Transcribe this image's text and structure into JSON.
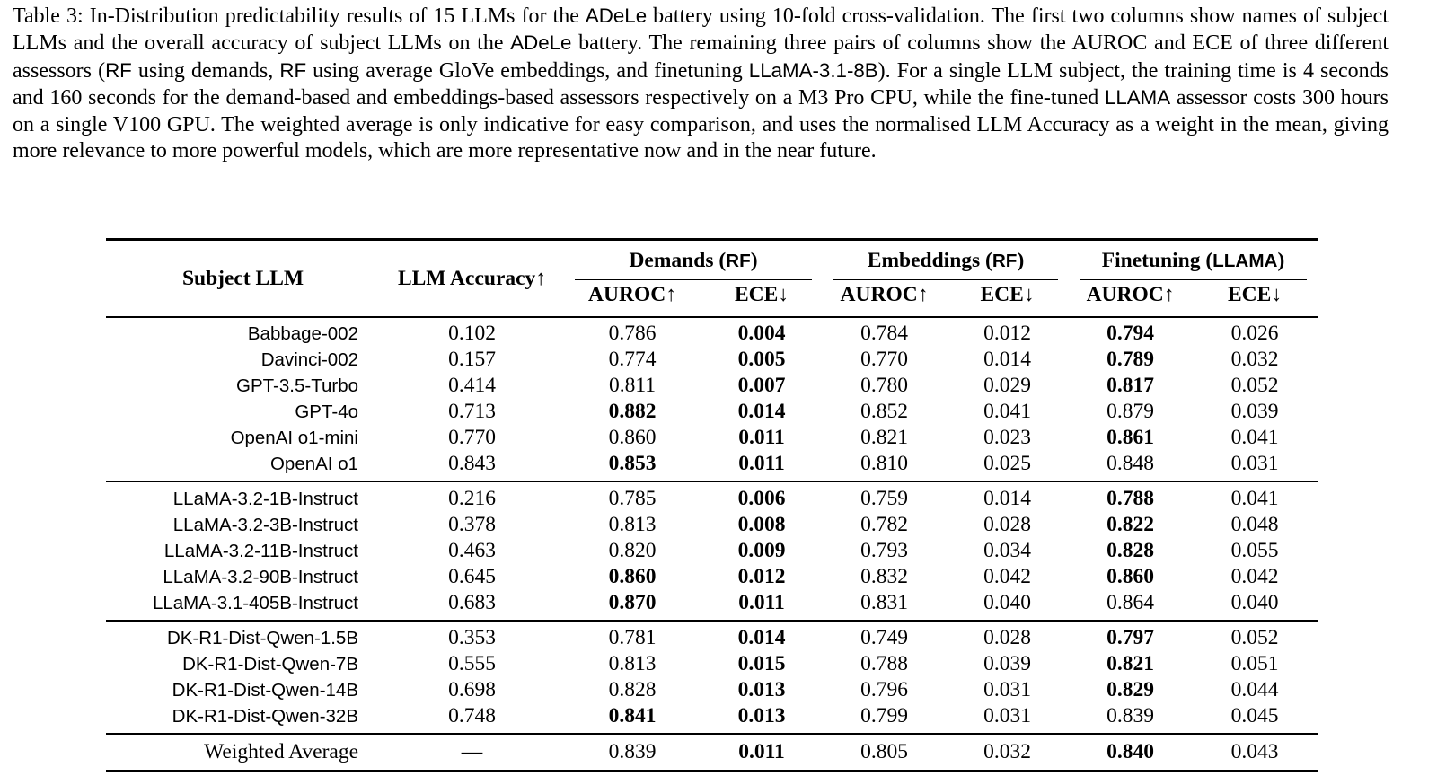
{
  "caption": {
    "runs": [
      {
        "font": "serif",
        "text": "Table 3: In-Distribution predictability results of 15 LLMs for the "
      },
      {
        "font": "sans",
        "text": "ADeLe"
      },
      {
        "font": "serif",
        "text": " battery using 10-fold cross-validation. The first two columns show names of subject LLMs and the overall accuracy of subject LLMs on the "
      },
      {
        "font": "sans",
        "text": "ADeLe"
      },
      {
        "font": "serif",
        "text": " battery. The remaining three pairs of columns show the AUROC and ECE of three different assessors ("
      },
      {
        "font": "sans",
        "text": "RF"
      },
      {
        "font": "serif",
        "text": " using demands, "
      },
      {
        "font": "sans",
        "text": "RF"
      },
      {
        "font": "serif",
        "text": " using average GloVe embeddings, and finetuning "
      },
      {
        "font": "sans",
        "text": "LLaMA-3.1-8B"
      },
      {
        "font": "serif",
        "text": "). For a single LLM subject, the training time is 4 seconds and 160 seconds for the demand-based and embeddings-based assessors respectively on a M3 Pro CPU, while the fine-tuned "
      },
      {
        "font": "sans",
        "text": "LLAMA"
      },
      {
        "font": "serif",
        "text": " assessor costs 300 hours on a single V100 GPU. The weighted average is only indicative for easy comparison, and uses the normalised LLM Accuracy as a weight in the mean, giving more relevance to more powerful models, which are more representative now and in the near future."
      }
    ]
  },
  "table": {
    "headers": {
      "subject": "Subject LLM",
      "accuracy": "LLM Accuracy↑"
    },
    "group_headers": [
      {
        "prefix": "Demands (",
        "tag": "RF",
        "suffix": ")"
      },
      {
        "prefix": "Embeddings (",
        "tag": "RF",
        "suffix": ")"
      },
      {
        "prefix": "Finetuning (",
        "tag": "LLAMA",
        "suffix": ")"
      }
    ],
    "subheaders": {
      "auroc": "AUROC↑",
      "ece": "ECE↓"
    },
    "column_keys": [
      "auroc-demands",
      "ece-demands",
      "auroc-embeddings",
      "ece-embeddings",
      "auroc-finetuning",
      "ece-finetuning"
    ],
    "groups": [
      {
        "name": "group-gpt-models",
        "rows": [
          {
            "name": "Babbage-002",
            "accuracy": "0.102",
            "values": [
              {
                "v": "0.786",
                "b": false
              },
              {
                "v": "0.004",
                "b": true
              },
              {
                "v": "0.784",
                "b": false
              },
              {
                "v": "0.012",
                "b": false
              },
              {
                "v": "0.794",
                "b": true
              },
              {
                "v": "0.026",
                "b": false
              }
            ]
          },
          {
            "name": "Davinci-002",
            "accuracy": "0.157",
            "values": [
              {
                "v": "0.774",
                "b": false
              },
              {
                "v": "0.005",
                "b": true
              },
              {
                "v": "0.770",
                "b": false
              },
              {
                "v": "0.014",
                "b": false
              },
              {
                "v": "0.789",
                "b": true
              },
              {
                "v": "0.032",
                "b": false
              }
            ]
          },
          {
            "name": "GPT-3.5-Turbo",
            "accuracy": "0.414",
            "values": [
              {
                "v": "0.811",
                "b": false
              },
              {
                "v": "0.007",
                "b": true
              },
              {
                "v": "0.780",
                "b": false
              },
              {
                "v": "0.029",
                "b": false
              },
              {
                "v": "0.817",
                "b": true
              },
              {
                "v": "0.052",
                "b": false
              }
            ]
          },
          {
            "name": "GPT-4o",
            "accuracy": "0.713",
            "values": [
              {
                "v": "0.882",
                "b": true
              },
              {
                "v": "0.014",
                "b": true
              },
              {
                "v": "0.852",
                "b": false
              },
              {
                "v": "0.041",
                "b": false
              },
              {
                "v": "0.879",
                "b": false
              },
              {
                "v": "0.039",
                "b": false
              }
            ]
          },
          {
            "name": "OpenAI o1-mini",
            "accuracy": "0.770",
            "values": [
              {
                "v": "0.860",
                "b": false
              },
              {
                "v": "0.011",
                "b": true
              },
              {
                "v": "0.821",
                "b": false
              },
              {
                "v": "0.023",
                "b": false
              },
              {
                "v": "0.861",
                "b": true
              },
              {
                "v": "0.041",
                "b": false
              }
            ]
          },
          {
            "name": "OpenAI o1",
            "accuracy": "0.843",
            "values": [
              {
                "v": "0.853",
                "b": true
              },
              {
                "v": "0.011",
                "b": true
              },
              {
                "v": "0.810",
                "b": false
              },
              {
                "v": "0.025",
                "b": false
              },
              {
                "v": "0.848",
                "b": false
              },
              {
                "v": "0.031",
                "b": false
              }
            ]
          }
        ]
      },
      {
        "name": "group-llama-models",
        "rows": [
          {
            "name": "LLaMA-3.2-1B-Instruct",
            "accuracy": "0.216",
            "values": [
              {
                "v": "0.785",
                "b": false
              },
              {
                "v": "0.006",
                "b": true
              },
              {
                "v": "0.759",
                "b": false
              },
              {
                "v": "0.014",
                "b": false
              },
              {
                "v": "0.788",
                "b": true
              },
              {
                "v": "0.041",
                "b": false
              }
            ]
          },
          {
            "name": "LLaMA-3.2-3B-Instruct",
            "accuracy": "0.378",
            "values": [
              {
                "v": "0.813",
                "b": false
              },
              {
                "v": "0.008",
                "b": true
              },
              {
                "v": "0.782",
                "b": false
              },
              {
                "v": "0.028",
                "b": false
              },
              {
                "v": "0.822",
                "b": true
              },
              {
                "v": "0.048",
                "b": false
              }
            ]
          },
          {
            "name": "LLaMA-3.2-11B-Instruct",
            "accuracy": "0.463",
            "values": [
              {
                "v": "0.820",
                "b": false
              },
              {
                "v": "0.009",
                "b": true
              },
              {
                "v": "0.793",
                "b": false
              },
              {
                "v": "0.034",
                "b": false
              },
              {
                "v": "0.828",
                "b": true
              },
              {
                "v": "0.055",
                "b": false
              }
            ]
          },
          {
            "name": "LLaMA-3.2-90B-Instruct",
            "accuracy": "0.645",
            "values": [
              {
                "v": "0.860",
                "b": true
              },
              {
                "v": "0.012",
                "b": true
              },
              {
                "v": "0.832",
                "b": false
              },
              {
                "v": "0.042",
                "b": false
              },
              {
                "v": "0.860",
                "b": true
              },
              {
                "v": "0.042",
                "b": false
              }
            ]
          },
          {
            "name": "LLaMA-3.1-405B-Instruct",
            "accuracy": "0.683",
            "values": [
              {
                "v": "0.870",
                "b": true
              },
              {
                "v": "0.011",
                "b": true
              },
              {
                "v": "0.831",
                "b": false
              },
              {
                "v": "0.040",
                "b": false
              },
              {
                "v": "0.864",
                "b": false
              },
              {
                "v": "0.040",
                "b": false
              }
            ]
          }
        ]
      },
      {
        "name": "group-qwen-models",
        "rows": [
          {
            "name": "DK-R1-Dist-Qwen-1.5B",
            "accuracy": "0.353",
            "values": [
              {
                "v": "0.781",
                "b": false
              },
              {
                "v": "0.014",
                "b": true
              },
              {
                "v": "0.749",
                "b": false
              },
              {
                "v": "0.028",
                "b": false
              },
              {
                "v": "0.797",
                "b": true
              },
              {
                "v": "0.052",
                "b": false
              }
            ]
          },
          {
            "name": "DK-R1-Dist-Qwen-7B",
            "accuracy": "0.555",
            "values": [
              {
                "v": "0.813",
                "b": false
              },
              {
                "v": "0.015",
                "b": true
              },
              {
                "v": "0.788",
                "b": false
              },
              {
                "v": "0.039",
                "b": false
              },
              {
                "v": "0.821",
                "b": true
              },
              {
                "v": "0.051",
                "b": false
              }
            ]
          },
          {
            "name": "DK-R1-Dist-Qwen-14B",
            "accuracy": "0.698",
            "values": [
              {
                "v": "0.828",
                "b": false
              },
              {
                "v": "0.013",
                "b": true
              },
              {
                "v": "0.796",
                "b": false
              },
              {
                "v": "0.031",
                "b": false
              },
              {
                "v": "0.829",
                "b": true
              },
              {
                "v": "0.044",
                "b": false
              }
            ]
          },
          {
            "name": "DK-R1-Dist-Qwen-32B",
            "accuracy": "0.748",
            "values": [
              {
                "v": "0.841",
                "b": true
              },
              {
                "v": "0.013",
                "b": true
              },
              {
                "v": "0.799",
                "b": false
              },
              {
                "v": "0.031",
                "b": false
              },
              {
                "v": "0.839",
                "b": false
              },
              {
                "v": "0.045",
                "b": false
              }
            ]
          }
        ]
      },
      {
        "name": "group-weighted-average",
        "rows": [
          {
            "name": "Weighted Average",
            "serif": true,
            "accuracy": "—",
            "values": [
              {
                "v": "0.839",
                "b": false
              },
              {
                "v": "0.011",
                "b": true
              },
              {
                "v": "0.805",
                "b": false
              },
              {
                "v": "0.032",
                "b": false
              },
              {
                "v": "0.840",
                "b": true
              },
              {
                "v": "0.043",
                "b": false
              }
            ]
          }
        ]
      }
    ]
  }
}
